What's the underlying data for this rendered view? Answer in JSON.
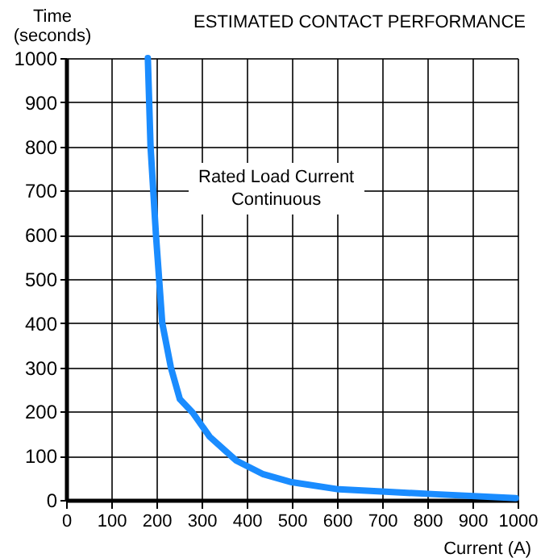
{
  "chart_data": {
    "type": "line",
    "title": "ESTIMATED CONTACT PERFORMANCE",
    "xlabel": "Current (A)",
    "ylabel": "Time (seconds)",
    "annotations": [
      "Rated Load Current Continuous"
    ],
    "series": [
      {
        "color": "#1a8cff",
        "x": [
          181,
          187,
          199,
          213,
          232,
          252,
          280,
          318,
          377,
          437,
          500,
          604,
          699,
          818,
          996
        ],
        "values": [
          1000,
          800,
          600,
          400,
          300,
          228,
          198,
          143,
          89,
          58,
          40,
          24,
          19,
          13,
          4
        ]
      }
    ],
    "xlim": [
      0,
      1000
    ],
    "ylim": [
      0,
      1000
    ],
    "xticks": [
      0,
      100,
      200,
      300,
      400,
      500,
      600,
      700,
      800,
      900,
      1000
    ],
    "yticks": [
      0,
      100,
      200,
      300,
      400,
      500,
      600,
      700,
      800,
      900,
      1000
    ],
    "grid": true,
    "marker": "none",
    "line_style": "solid"
  }
}
